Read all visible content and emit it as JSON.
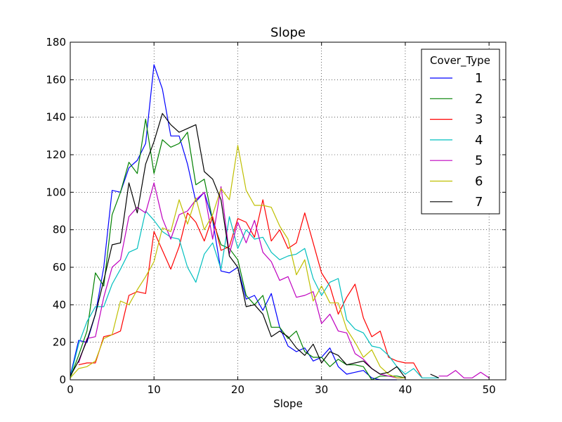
{
  "chart_data": {
    "type": "line",
    "title": "Slope",
    "xlabel": "Slope",
    "ylabel": "",
    "xlim": [
      0,
      52
    ],
    "ylim": [
      0,
      180
    ],
    "xticks": [
      0,
      10,
      20,
      30,
      40,
      50
    ],
    "yticks": [
      0,
      20,
      40,
      60,
      80,
      100,
      120,
      140,
      160,
      180
    ],
    "grid": true,
    "legend": {
      "title": "Cover_Type",
      "position": "top-right"
    },
    "series": [
      {
        "name": "1",
        "color": "#0000ff",
        "points": [
          [
            0,
            2
          ],
          [
            1,
            21
          ],
          [
            2,
            20
          ],
          [
            3,
            35
          ],
          [
            4,
            60
          ],
          [
            5,
            101
          ],
          [
            6,
            100
          ],
          [
            7,
            113
          ],
          [
            8,
            117
          ],
          [
            9,
            126
          ],
          [
            10,
            168
          ],
          [
            11,
            155
          ],
          [
            12,
            130
          ],
          [
            13,
            130
          ],
          [
            14,
            115
          ],
          [
            15,
            95
          ],
          [
            16,
            100
          ],
          [
            17,
            85
          ],
          [
            18,
            58
          ],
          [
            19,
            57
          ],
          [
            20,
            60
          ],
          [
            21,
            43
          ],
          [
            22,
            45
          ],
          [
            23,
            37
          ],
          [
            24,
            46
          ],
          [
            25,
            28
          ],
          [
            26,
            18
          ],
          [
            27,
            15
          ],
          [
            28,
            17
          ],
          [
            29,
            10
          ],
          [
            30,
            12
          ],
          [
            31,
            17
          ],
          [
            32,
            7
          ],
          [
            33,
            3
          ],
          [
            34,
            4
          ],
          [
            35,
            5
          ],
          [
            36,
            1
          ],
          [
            37,
            0
          ],
          [
            38,
            0
          ],
          [
            39,
            0
          ]
        ]
      },
      {
        "name": "2",
        "color": "#008000",
        "points": [
          [
            0,
            1
          ],
          [
            1,
            13
          ],
          [
            2,
            26
          ],
          [
            3,
            57
          ],
          [
            4,
            50
          ],
          [
            5,
            88
          ],
          [
            6,
            100
          ],
          [
            7,
            116
          ],
          [
            8,
            110
          ],
          [
            9,
            139
          ],
          [
            10,
            110
          ],
          [
            11,
            128
          ],
          [
            12,
            124
          ],
          [
            13,
            126
          ],
          [
            14,
            132
          ],
          [
            15,
            104
          ],
          [
            16,
            107
          ],
          [
            17,
            85
          ],
          [
            18,
            72
          ],
          [
            19,
            70
          ],
          [
            20,
            64
          ],
          [
            21,
            45
          ],
          [
            22,
            40
          ],
          [
            23,
            45
          ],
          [
            24,
            28
          ],
          [
            25,
            28
          ],
          [
            26,
            22
          ],
          [
            27,
            26
          ],
          [
            28,
            15
          ],
          [
            29,
            12
          ],
          [
            30,
            12
          ],
          [
            31,
            7
          ],
          [
            32,
            11
          ],
          [
            33,
            8
          ],
          [
            34,
            8
          ],
          [
            35,
            7
          ],
          [
            36,
            0
          ],
          [
            37,
            2
          ],
          [
            38,
            2
          ],
          [
            39,
            2
          ],
          [
            40,
            1
          ]
        ]
      },
      {
        "name": "3",
        "color": "#ff0000",
        "points": [
          [
            1,
            8
          ],
          [
            2,
            9
          ],
          [
            3,
            9
          ],
          [
            4,
            23
          ],
          [
            5,
            24
          ],
          [
            6,
            26
          ],
          [
            7,
            45
          ],
          [
            8,
            47
          ],
          [
            9,
            46
          ],
          [
            10,
            79
          ],
          [
            11,
            69
          ],
          [
            12,
            59
          ],
          [
            13,
            71
          ],
          [
            14,
            89
          ],
          [
            15,
            84
          ],
          [
            16,
            74
          ],
          [
            17,
            87
          ],
          [
            18,
            69
          ],
          [
            19,
            71
          ],
          [
            20,
            86
          ],
          [
            21,
            84
          ],
          [
            22,
            76
          ],
          [
            23,
            96
          ],
          [
            24,
            74
          ],
          [
            25,
            80
          ],
          [
            26,
            70
          ],
          [
            27,
            73
          ],
          [
            28,
            89
          ],
          [
            29,
            73
          ],
          [
            30,
            57
          ],
          [
            31,
            50
          ],
          [
            32,
            35
          ],
          [
            33,
            44
          ],
          [
            34,
            51
          ],
          [
            35,
            33
          ],
          [
            36,
            23
          ],
          [
            37,
            26
          ],
          [
            38,
            12
          ],
          [
            39,
            10
          ],
          [
            40,
            9
          ],
          [
            41,
            9
          ],
          [
            42,
            1
          ]
        ]
      },
      {
        "name": "4",
        "color": "#00bfbf",
        "points": [
          [
            0,
            1
          ],
          [
            1,
            19
          ],
          [
            2,
            31
          ],
          [
            3,
            39
          ],
          [
            4,
            39
          ],
          [
            5,
            51
          ],
          [
            6,
            59
          ],
          [
            7,
            68
          ],
          [
            8,
            70
          ],
          [
            9,
            90
          ],
          [
            10,
            85
          ],
          [
            11,
            79
          ],
          [
            12,
            76
          ],
          [
            13,
            75
          ],
          [
            14,
            60
          ],
          [
            15,
            52
          ],
          [
            16,
            67
          ],
          [
            17,
            73
          ],
          [
            18,
            59
          ],
          [
            19,
            87
          ],
          [
            20,
            70
          ],
          [
            21,
            80
          ],
          [
            22,
            75
          ],
          [
            23,
            76
          ],
          [
            24,
            68
          ],
          [
            25,
            64
          ],
          [
            26,
            66
          ],
          [
            27,
            67
          ],
          [
            28,
            70
          ],
          [
            29,
            54
          ],
          [
            30,
            45
          ],
          [
            31,
            52
          ],
          [
            32,
            54
          ],
          [
            33,
            32
          ],
          [
            34,
            27
          ],
          [
            35,
            25
          ],
          [
            36,
            18
          ],
          [
            37,
            17
          ],
          [
            38,
            13
          ],
          [
            39,
            7
          ],
          [
            40,
            3
          ],
          [
            41,
            6
          ],
          [
            42,
            1
          ],
          [
            43,
            1
          ],
          [
            44,
            1
          ]
        ]
      },
      {
        "name": "5",
        "color": "#bf00bf",
        "points": [
          [
            1,
            9
          ],
          [
            2,
            22
          ],
          [
            3,
            23
          ],
          [
            4,
            44
          ],
          [
            5,
            60
          ],
          [
            6,
            64
          ],
          [
            7,
            87
          ],
          [
            8,
            92
          ],
          [
            9,
            89
          ],
          [
            10,
            105
          ],
          [
            11,
            86
          ],
          [
            12,
            75
          ],
          [
            13,
            88
          ],
          [
            14,
            90
          ],
          [
            15,
            96
          ],
          [
            16,
            100
          ],
          [
            17,
            75
          ],
          [
            18,
            103
          ],
          [
            19,
            67
          ],
          [
            20,
            84
          ],
          [
            21,
            73
          ],
          [
            22,
            85
          ],
          [
            23,
            68
          ],
          [
            24,
            63
          ],
          [
            25,
            53
          ],
          [
            26,
            55
          ],
          [
            27,
            44
          ],
          [
            28,
            45
          ],
          [
            29,
            47
          ],
          [
            30,
            30
          ],
          [
            31,
            35
          ],
          [
            32,
            26
          ],
          [
            33,
            25
          ],
          [
            34,
            14
          ],
          [
            35,
            11
          ],
          [
            36,
            6
          ],
          [
            37,
            3
          ],
          [
            38,
            2
          ],
          [
            39,
            1
          ],
          [
            40,
            1
          ],
          [
            44,
            2
          ],
          [
            45,
            2
          ],
          [
            46,
            5
          ],
          [
            47,
            1
          ],
          [
            48,
            1
          ],
          [
            49,
            4
          ],
          [
            50,
            1
          ]
        ]
      },
      {
        "name": "6",
        "color": "#bfbf00",
        "points": [
          [
            0,
            1
          ],
          [
            1,
            6
          ],
          [
            2,
            7
          ],
          [
            3,
            10
          ],
          [
            4,
            22
          ],
          [
            5,
            24
          ],
          [
            6,
            42
          ],
          [
            7,
            40
          ],
          [
            8,
            48
          ],
          [
            9,
            55
          ],
          [
            10,
            63
          ],
          [
            11,
            81
          ],
          [
            12,
            79
          ],
          [
            13,
            96
          ],
          [
            14,
            83
          ],
          [
            15,
            97
          ],
          [
            16,
            80
          ],
          [
            17,
            88
          ],
          [
            18,
            102
          ],
          [
            19,
            96
          ],
          [
            20,
            125
          ],
          [
            21,
            101
          ],
          [
            22,
            93
          ],
          [
            23,
            93
          ],
          [
            24,
            92
          ],
          [
            25,
            82
          ],
          [
            26,
            75
          ],
          [
            27,
            56
          ],
          [
            28,
            64
          ],
          [
            29,
            42
          ],
          [
            30,
            50
          ],
          [
            31,
            41
          ],
          [
            32,
            41
          ],
          [
            33,
            27
          ],
          [
            34,
            20
          ],
          [
            35,
            12
          ],
          [
            36,
            16
          ],
          [
            37,
            7
          ],
          [
            38,
            3
          ],
          [
            39,
            1
          ],
          [
            40,
            1
          ]
        ]
      },
      {
        "name": "7",
        "color": "#000000",
        "points": [
          [
            0,
            2
          ],
          [
            1,
            10
          ],
          [
            2,
            21
          ],
          [
            3,
            35
          ],
          [
            4,
            53
          ],
          [
            5,
            72
          ],
          [
            6,
            73
          ],
          [
            7,
            105
          ],
          [
            8,
            89
          ],
          [
            9,
            115
          ],
          [
            10,
            127
          ],
          [
            11,
            142
          ],
          [
            12,
            136
          ],
          [
            13,
            132
          ],
          [
            14,
            134
          ],
          [
            15,
            136
          ],
          [
            16,
            111
          ],
          [
            17,
            107
          ],
          [
            18,
            96
          ],
          [
            19,
            66
          ],
          [
            20,
            60
          ],
          [
            21,
            39
          ],
          [
            22,
            40
          ],
          [
            23,
            35
          ],
          [
            24,
            23
          ],
          [
            25,
            26
          ],
          [
            26,
            23
          ],
          [
            27,
            17
          ],
          [
            28,
            13
          ],
          [
            29,
            19
          ],
          [
            30,
            9
          ],
          [
            31,
            15
          ],
          [
            32,
            13
          ],
          [
            33,
            8
          ],
          [
            34,
            9
          ],
          [
            35,
            10
          ],
          [
            36,
            6
          ],
          [
            37,
            3
          ],
          [
            38,
            4
          ],
          [
            39,
            7
          ],
          [
            40,
            1
          ],
          [
            43,
            3
          ],
          [
            44,
            1
          ]
        ]
      }
    ]
  }
}
